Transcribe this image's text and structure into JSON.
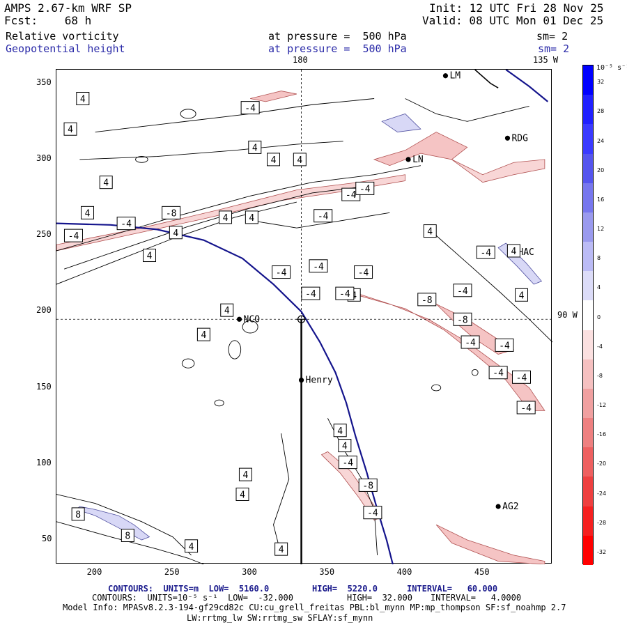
{
  "header": {
    "model": "AMPS 2.67-km WRF SP",
    "forecast": "Fcst:    68 h",
    "init": "Init: 12 UTC Fri 28 Nov 25",
    "valid": "Valid: 08 UTC Mon 01 Dec 25",
    "field1_name": "Relative vorticity",
    "field1_level": "at pressure =  500 hPa",
    "field1_sm": "sm= 2",
    "field2_name": "Geopotential height",
    "field2_level": "at pressure =  500 hPa",
    "field2_sm": "sm= 2"
  },
  "map": {
    "meridian_top": "180",
    "meridian_top_right": "135 W",
    "parallel_right": "90 W",
    "x_ticks": [
      "200",
      "250",
      "300",
      "350",
      "400",
      "450"
    ],
    "y_ticks": [
      "350",
      "300",
      "250",
      "200",
      "150",
      "100",
      "50"
    ],
    "stations": [
      {
        "name": "RDG",
        "x": 466,
        "y": 314
      },
      {
        "name": "HAC",
        "x": 470,
        "y": 239
      },
      {
        "name": "NCO",
        "x": 293,
        "y": 195
      },
      {
        "name": "Henry",
        "x": 333,
        "y": 155
      },
      {
        "name": "AG2",
        "x": 460,
        "y": 72
      },
      {
        "name": "LN",
        "x": 402,
        "y": 300
      },
      {
        "name": "LM",
        "x": 426,
        "y": 355
      }
    ],
    "pole_marker": {
      "x": 333,
      "y": 195
    },
    "vorticity_labels": [
      {
        "text": "4",
        "x": 192,
        "y": 340
      },
      {
        "text": "4",
        "x": 184,
        "y": 320
      },
      {
        "text": "4",
        "x": 303,
        "y": 308
      },
      {
        "text": "4",
        "x": 315,
        "y": 300
      },
      {
        "text": "4",
        "x": 332,
        "y": 300
      },
      {
        "text": "4",
        "x": 207,
        "y": 285
      },
      {
        "text": "4",
        "x": 195,
        "y": 265
      },
      {
        "text": "4",
        "x": 284,
        "y": 262
      },
      {
        "text": "4",
        "x": 301,
        "y": 262
      },
      {
        "text": "4",
        "x": 252,
        "y": 252
      },
      {
        "text": "4",
        "x": 235,
        "y": 237
      },
      {
        "text": "4",
        "x": 416,
        "y": 253
      },
      {
        "text": "4",
        "x": 470,
        "y": 240
      },
      {
        "text": "4",
        "x": 167,
        "y": 232
      },
      {
        "text": "4",
        "x": 159,
        "y": 222
      },
      {
        "text": "4",
        "x": 367,
        "y": 211
      },
      {
        "text": "4",
        "x": 475,
        "y": 211
      },
      {
        "text": "4",
        "x": 285,
        "y": 201
      },
      {
        "text": "4",
        "x": 270,
        "y": 185
      },
      {
        "text": "4",
        "x": 358,
        "y": 122
      },
      {
        "text": "4",
        "x": 361,
        "y": 112
      },
      {
        "text": "4",
        "x": 297,
        "y": 93
      },
      {
        "text": "4",
        "x": 170,
        "y": 85
      },
      {
        "text": "4",
        "x": 295,
        "y": 80
      },
      {
        "text": "4",
        "x": 262,
        "y": 46
      },
      {
        "text": "4",
        "x": 320,
        "y": 44
      },
      {
        "text": "-4",
        "x": 300,
        "y": 334
      },
      {
        "text": "-4",
        "x": 347,
        "y": 263
      },
      {
        "text": "-4",
        "x": 365,
        "y": 277
      },
      {
        "text": "-4",
        "x": 374,
        "y": 281
      },
      {
        "text": "-4",
        "x": 452,
        "y": 239
      },
      {
        "text": "-4",
        "x": 220,
        "y": 258
      },
      {
        "text": "-4",
        "x": 186,
        "y": 250
      },
      {
        "text": "-4",
        "x": 167,
        "y": 250
      },
      {
        "text": "-4",
        "x": 320,
        "y": 226
      },
      {
        "text": "-4",
        "x": 344,
        "y": 230
      },
      {
        "text": "-4",
        "x": 373,
        "y": 226
      },
      {
        "text": "-4",
        "x": 339,
        "y": 212
      },
      {
        "text": "-4",
        "x": 361,
        "y": 212
      },
      {
        "text": "-4",
        "x": 437,
        "y": 214
      },
      {
        "text": "-4",
        "x": 442,
        "y": 180
      },
      {
        "text": "-4",
        "x": 464,
        "y": 178
      },
      {
        "text": "-4",
        "x": 460,
        "y": 160
      },
      {
        "text": "-4",
        "x": 475,
        "y": 157
      },
      {
        "text": "-4",
        "x": 478,
        "y": 137
      },
      {
        "text": "-4",
        "x": 363,
        "y": 101
      },
      {
        "text": "-4",
        "x": 379,
        "y": 68
      },
      {
        "text": "-8",
        "x": 249,
        "y": 265
      },
      {
        "text": "-8",
        "x": 414,
        "y": 208
      },
      {
        "text": "-8",
        "x": 437,
        "y": 195
      },
      {
        "text": "-8",
        "x": 376,
        "y": 86
      },
      {
        "text": "8",
        "x": 189,
        "y": 67
      },
      {
        "text": "8",
        "x": 221,
        "y": 53
      }
    ]
  },
  "colorbar": {
    "unit": "10⁻⁵ s⁻¹",
    "ticks": [
      "32",
      "28",
      "24",
      "20",
      "16",
      "12",
      "8",
      "4",
      "0",
      "-4",
      "-8",
      "-12",
      "-16",
      "-20",
      "-24",
      "-28",
      "-32"
    ],
    "colors": [
      "#0000ff",
      "#2020ff",
      "#3a3aff",
      "#5555ee",
      "#7777ee",
      "#9a9aee",
      "#bbbbf5",
      "#dcdcf8",
      "#ffffff",
      "#fbe0e0",
      "#f5c0c0",
      "#f0a0a0",
      "#ee8080",
      "#ee6060",
      "#ee4040",
      "#f52020",
      "#ff0000"
    ]
  },
  "footer": {
    "line1_contours": "CONTOURS:  UNITS=m  LOW=  5160.0",
    "line1_high": "HIGH=  5220.0",
    "line1_interval": "INTERVAL=   60.000",
    "line2_contours": "CONTOURS:  UNITS=10⁻⁵ s⁻¹  LOW=  -32.000",
    "line2_high": "HIGH=  32.000",
    "line2_interval": "INTERVAL=   4.0000",
    "model_info": "Model Info: MPASv8.2.3-194-gf29cd82c CU:cu_grell_freitas PBL:bl_mynn MP:mp_thompson SF:sf_noahmp 2.7",
    "physics": "LW:rrtmg_lw SW:rrtmg_sw SFLAY:sf_mynn"
  }
}
